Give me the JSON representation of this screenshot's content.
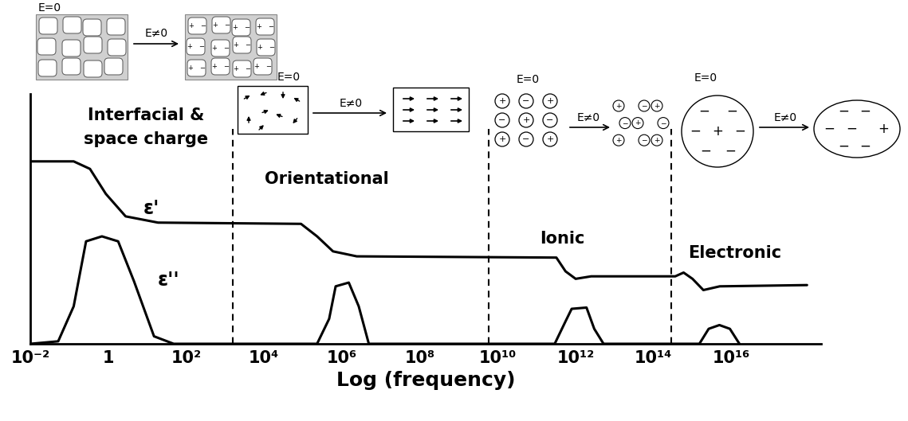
{
  "chart_data": {
    "type": "line",
    "log": "x",
    "xlabel": "Log (frequency)",
    "xlim": [
      0.01,
      2e+18
    ],
    "xticks": [
      {
        "value": 0.01,
        "label": "10⁻²"
      },
      1,
      {
        "value": 100,
        "label": "10²"
      },
      {
        "value": 10000,
        "label": "10⁴"
      },
      {
        "value": 1000000,
        "label": "10⁶"
      },
      {
        "value": 100000000,
        "label": "10⁸"
      },
      {
        "value": 10000000000,
        "label": "10¹⁰"
      },
      {
        "value": 1000000000000,
        "label": "10¹²"
      },
      {
        "value": 100000000000000,
        "label": "10¹⁴"
      },
      {
        "value": 10000000000000000,
        "label": "10¹⁶"
      }
    ],
    "ylim": [
      0,
      10
    ],
    "tick_labels": "x",
    "series": [
      {
        "name": "ε'",
        "color": "#000000",
        "x": [
          0.01,
          0.13,
          0.34,
          0.87,
          2.8,
          19,
          89000,
          230000,
          590000,
          2400000,
          320000000000,
          550000000000,
          1000000000000,
          2500000000000,
          360000000000000,
          590000000000000,
          1000000000000000,
          1900000000000000,
          5000000000000000,
          870000000000000000
        ],
        "values": [
          7.3,
          7.3,
          7.0,
          6.0,
          5.1,
          4.85,
          4.8,
          4.3,
          3.7,
          3.5,
          3.45,
          2.9,
          2.6,
          2.7,
          2.7,
          2.85,
          2.6,
          2.15,
          2.3,
          2.35
        ]
      },
      {
        "name": "ε''",
        "color": "#000000",
        "x": [
          0.01,
          0.052,
          0.13,
          0.27,
          0.69,
          1.8,
          4.6,
          15,
          48,
          230000,
          470000,
          690000,
          1500000,
          2700000,
          4900000,
          290000000000,
          550000000000,
          790000000000,
          1900000000000,
          3000000000000,
          5200000000000,
          1500000000000000,
          2600000000000000,
          4900000000000000,
          9100000000000000,
          16000000000000000
        ],
        "values": [
          0,
          0.1,
          1.5,
          4.1,
          4.3,
          4.1,
          2.5,
          0.3,
          0,
          0,
          1.0,
          2.3,
          2.45,
          1.5,
          0,
          0,
          0.9,
          1.4,
          1.45,
          0.6,
          0,
          0,
          0.6,
          0.75,
          0.6,
          0
        ]
      }
    ],
    "region_boundaries": [
      1600,
      5800000000,
      290000000000000
    ],
    "regions": [
      {
        "label": "Interfacial &\nspace charge",
        "states": [
          "E=0",
          "E≠0"
        ]
      },
      {
        "label": "Orientational",
        "states": [
          "E=0",
          "E≠0"
        ]
      },
      {
        "label": "Ionic",
        "states": [
          "E=0",
          "E≠0"
        ]
      },
      {
        "label": "Electronic",
        "states": [
          "E=0",
          "E≠0"
        ]
      }
    ],
    "charge_signs": {
      "positive": "+",
      "negative": "−"
    }
  }
}
